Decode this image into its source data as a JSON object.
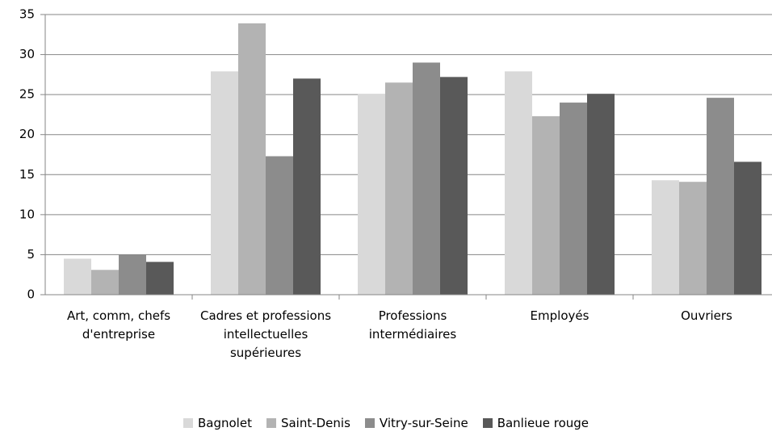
{
  "chart_data": {
    "type": "bar",
    "categories": [
      "Art, comm, chefs d'entreprise",
      "Cadres et professions intellectuelles supérieures",
      "Professions intermédiaires",
      "Employés",
      "Ouvriers"
    ],
    "series": [
      {
        "name": "Bagnolet",
        "color": "#d9d9d9",
        "values": [
          4.5,
          27.9,
          25.1,
          27.9,
          14.3
        ]
      },
      {
        "name": "Saint-Denis",
        "color": "#b3b3b3",
        "values": [
          3.1,
          33.9,
          26.5,
          22.3,
          14.1
        ]
      },
      {
        "name": "Vitry-sur-Seine",
        "color": "#8c8c8c",
        "values": [
          5.0,
          17.3,
          29.0,
          24.0,
          24.6
        ]
      },
      {
        "name": "Banlieue rouge",
        "color": "#595959",
        "values": [
          4.1,
          27.0,
          27.2,
          25.1,
          16.6
        ]
      }
    ],
    "ylim": [
      0,
      35
    ],
    "yticks": [
      0,
      5,
      10,
      15,
      20,
      25,
      30,
      35
    ],
    "grid": true,
    "legend": "bottom"
  }
}
